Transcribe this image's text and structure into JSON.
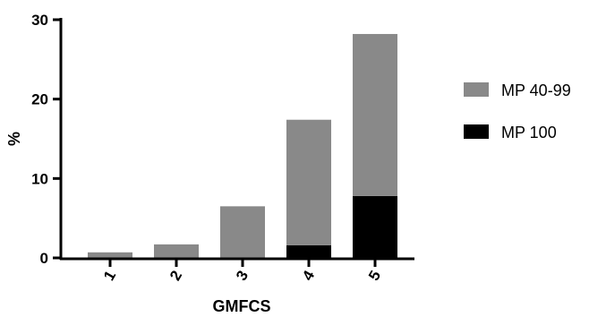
{
  "chart_data": {
    "type": "bar",
    "stacked": true,
    "categories": [
      "1",
      "2",
      "3",
      "4",
      "5"
    ],
    "series": [
      {
        "name": "MP 100",
        "color": "#000000",
        "values": [
          0,
          0,
          0,
          1.6,
          7.8
        ]
      },
      {
        "name": "MP 40-99",
        "color": "#898989",
        "values": [
          0.7,
          1.7,
          6.5,
          15.8,
          20.4
        ]
      }
    ],
    "xlabel": "GMFCS",
    "ylabel": "%",
    "ylim": [
      0,
      30
    ],
    "yticks": [
      "0",
      "10",
      "20",
      "30"
    ],
    "grid": false,
    "legend": {
      "placement": "right",
      "order": [
        "MP 40-99",
        "MP 100"
      ]
    }
  }
}
